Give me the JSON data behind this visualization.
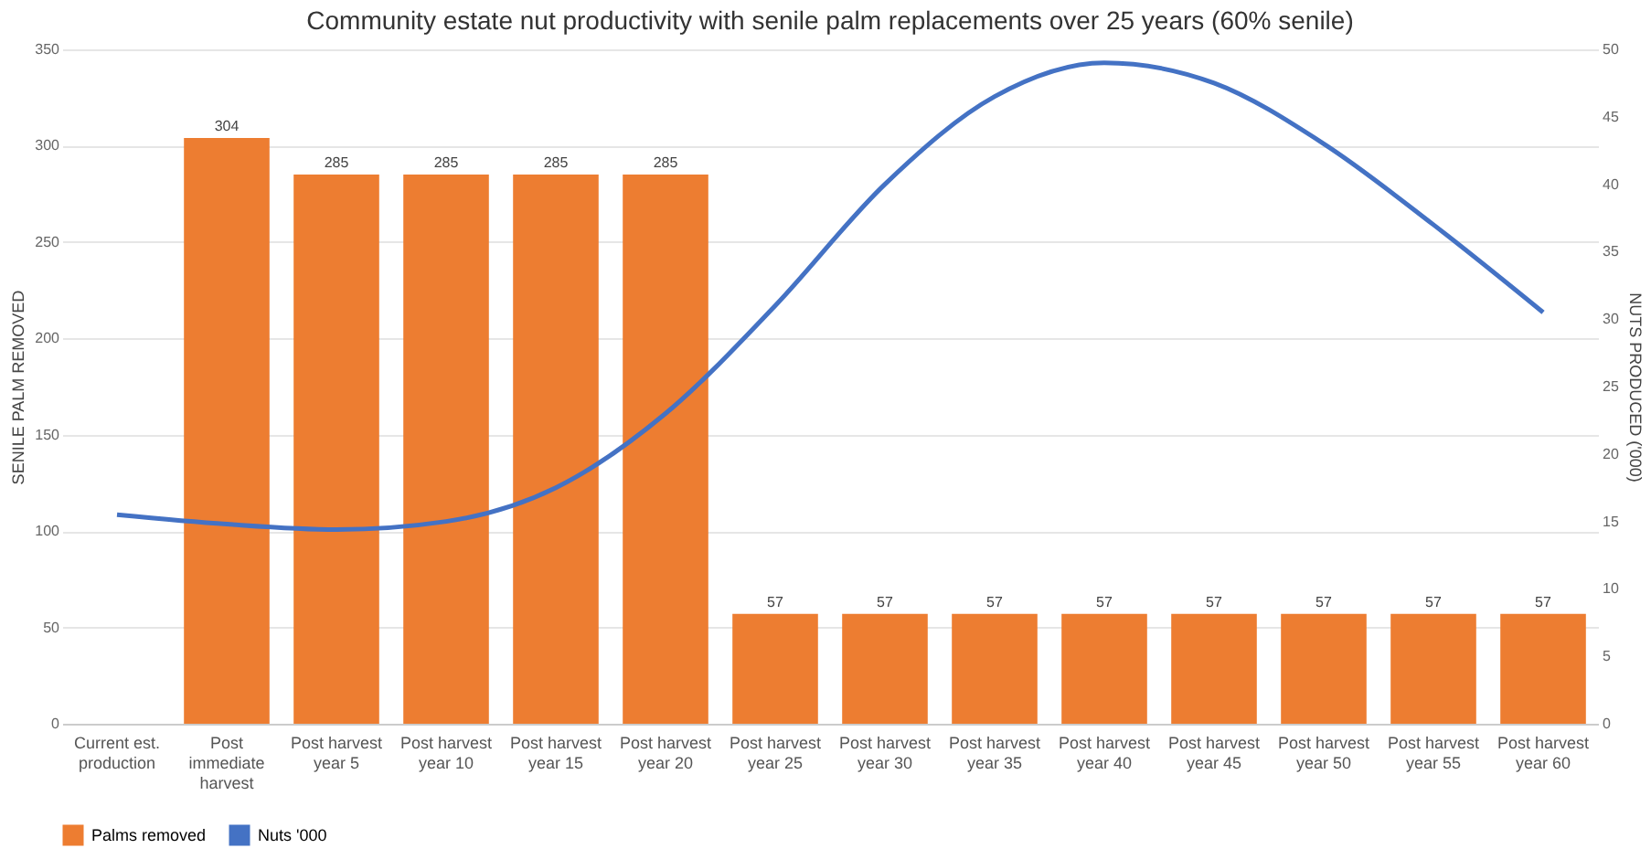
{
  "chart_data": {
    "type": "bar",
    "title": "Community estate nut productivity with senile palm replacements over 25 years (60% senile)",
    "categories": [
      "Current est. production",
      "Post immediate harvest",
      "Post harvest year 5",
      "Post harvest year 10",
      "Post harvest year 15",
      "Post harvest year 20",
      "Post harvest year 25",
      "Post harvest year 30",
      "Post harvest year 35",
      "Post harvest year 40",
      "Post harvest year 45",
      "Post harvest year 50",
      "Post harvest year 55",
      "Post harvest year 60"
    ],
    "series": [
      {
        "name": "Palms removed",
        "color": "#ed7d31",
        "values": [
          null,
          304,
          285,
          285,
          285,
          285,
          57,
          57,
          57,
          57,
          57,
          57,
          57,
          57
        ],
        "value_labels": [
          null,
          "304",
          "285",
          "285",
          "285",
          "285",
          "57",
          "57",
          "57",
          "57",
          "57",
          "57",
          "57",
          "57"
        ]
      },
      {
        "name": "Nuts '000",
        "type": "line",
        "axis": "y2",
        "color": "#4472c4",
        "values": [
          15.5,
          14.8,
          14.4,
          15.0,
          17.5,
          23,
          31,
          40,
          46.5,
          49,
          47.5,
          43,
          37,
          30.5
        ]
      }
    ],
    "ylabel": "SENILE PALM REMOVED",
    "y2label": "NUTS PRODUCED ('000)",
    "ylim": [
      0,
      350
    ],
    "yticks": [
      0,
      50,
      100,
      150,
      200,
      250,
      300,
      350
    ],
    "y2lim": [
      0,
      50
    ],
    "y2ticks": [
      0,
      5,
      10,
      15,
      20,
      25,
      30,
      35,
      40,
      45,
      50
    ],
    "grid": "y",
    "legend": "bottom"
  }
}
